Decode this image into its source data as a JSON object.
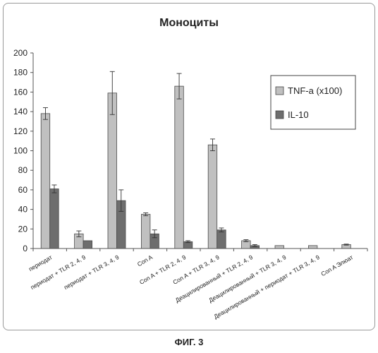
{
  "figure_caption": "ФИГ. 3",
  "chart_data": {
    "type": "bar",
    "title": "Моноциты",
    "xlabel": "",
    "ylabel": "",
    "ylim": [
      0,
      200
    ],
    "yticks": [
      0,
      20,
      40,
      60,
      80,
      100,
      120,
      140,
      160,
      180,
      200
    ],
    "grid": false,
    "legend_position": "right",
    "categories": [
      "периодат",
      "периодат + TLR 2, 4, 9",
      "периодат + TLR 3, 4, 9",
      "Con A",
      "Con A + TLR 2, 4, 9",
      "Con A + TLR 3, 4, 9",
      "Деацилированный + TLR 2, 4, 9",
      "Деацилированный + TLR 3, 4, 9",
      "Деацилированный + периодат + TLR 3, 4, 9",
      "Con A Элюат"
    ],
    "series": [
      {
        "name": "TNF-a (x100)",
        "color": "#c0c0c0",
        "values": [
          138,
          15,
          159,
          35,
          166,
          106,
          8,
          3,
          3,
          4
        ],
        "errors": [
          6,
          3,
          22,
          1.5,
          13,
          6,
          1,
          0,
          0,
          0.5
        ]
      },
      {
        "name": "IL-10",
        "color": "#6e6e6e",
        "values": [
          61,
          8,
          49,
          15,
          7,
          19,
          3,
          0,
          0,
          0
        ],
        "errors": [
          4,
          0,
          11,
          4,
          1,
          2,
          1,
          0,
          0,
          0
        ]
      }
    ]
  }
}
